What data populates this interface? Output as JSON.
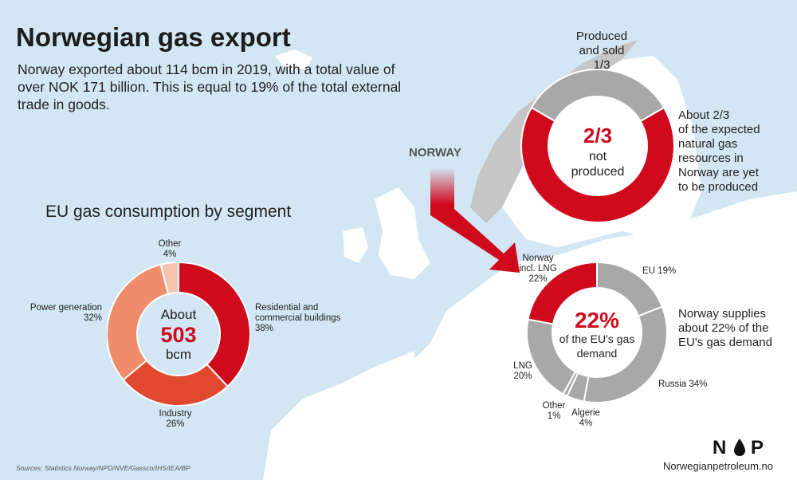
{
  "title": "Norwegian gas export",
  "intro": "Norway exported about 114 bcm in 2019, with a total value of over NOK 171 billion. This is equal to 19% of the total external trade in goods.",
  "map_label": "NORWAY",
  "colors": {
    "red": "#cf0a1d",
    "grey": "#a8a8a8",
    "sea": "#d3e6f3",
    "land": "#ffffff",
    "norway_land": "#c6c6c6",
    "orange_red": "#e0492f",
    "salmon": "#ef8c6c",
    "light_salmon": "#f7c3ae"
  },
  "resources": {
    "center_big": "2/3",
    "center_line1": "not",
    "center_line2": "produced",
    "label_top": [
      "Produced",
      "and sold",
      "1/3"
    ],
    "label_right": [
      "About 2/3",
      "of the expected",
      "natural gas",
      "resources in",
      "Norway are yet",
      "to be produced"
    ]
  },
  "eu_consumption": {
    "title": "EU gas consumption by segment",
    "center_line1": "About",
    "center_big": "503",
    "center_line3": "bcm",
    "labels": {
      "other": [
        "Other",
        "4%"
      ],
      "residential": [
        "Residential and",
        "commercial buildings",
        "38%"
      ],
      "power": [
        "Power generation",
        "32%"
      ],
      "industry": [
        "Industry",
        "26%"
      ]
    }
  },
  "eu_supply": {
    "center_big": "22%",
    "center_line2": "of the EU's gas",
    "center_line3": "demand",
    "labels": {
      "norway": [
        "Norway",
        "incl. LNG",
        "22%"
      ],
      "eu": [
        "EU 19%"
      ],
      "russia": [
        "Russia 34%"
      ],
      "algerie": [
        "Algerie",
        "4%"
      ],
      "other": [
        "Other",
        "1%"
      ],
      "lng": [
        "LNG",
        "20%"
      ]
    },
    "note": [
      "Norway supplies",
      "about 22% of the",
      "EU's gas demand"
    ]
  },
  "sources": "Sources: Statistics Norway/NPD/NVE/Gassco/IHS/IEA/BP",
  "logo": "N P",
  "site": "Norwegianpetroleum.no",
  "chart_data": [
    {
      "type": "pie",
      "categories": [
        "Produced and sold",
        "not produced"
      ],
      "values": [
        0.3333,
        0.6667
      ],
      "colors": [
        "#a8a8a8",
        "#cf0a1d"
      ]
    },
    {
      "type": "pie",
      "title": "EU gas consumption by segment",
      "categories": [
        "Residential and commercial buildings",
        "Industry",
        "Power generation",
        "Other"
      ],
      "values": [
        38,
        26,
        32,
        4
      ],
      "colors": [
        "#cf0a1d",
        "#e0492f",
        "#ef8c6c",
        "#f7c3ae"
      ]
    },
    {
      "type": "pie",
      "categories": [
        "EU",
        "Russia",
        "Algerie",
        "Other",
        "LNG",
        "Norway incl. LNG"
      ],
      "values": [
        19,
        34,
        4,
        1,
        20,
        22
      ],
      "colors": [
        "#a8a8a8",
        "#a8a8a8",
        "#a8a8a8",
        "#a8a8a8",
        "#a8a8a8",
        "#cf0a1d"
      ]
    }
  ]
}
